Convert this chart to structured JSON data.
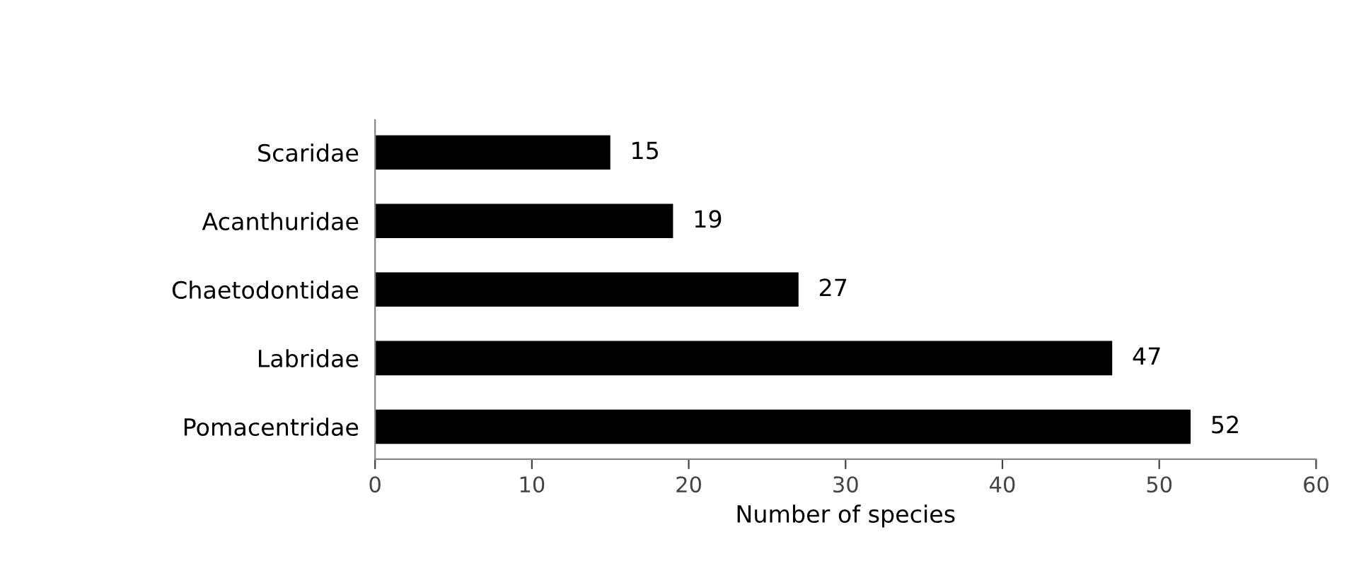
{
  "chart_data": {
    "type": "bar",
    "orientation": "horizontal",
    "xlabel": "Number of species",
    "categories": [
      "Scaridae",
      "Acanthuridae",
      "Chaetodontidae",
      "Labridae",
      "Pomacentridae"
    ],
    "values": [
      15,
      19,
      27,
      47,
      52
    ],
    "color": "#000000",
    "data_labels": true,
    "xlim": [
      0,
      60
    ],
    "xticks": [
      0,
      10,
      20,
      30,
      40,
      50,
      60
    ],
    "grid": false,
    "legend": false
  }
}
